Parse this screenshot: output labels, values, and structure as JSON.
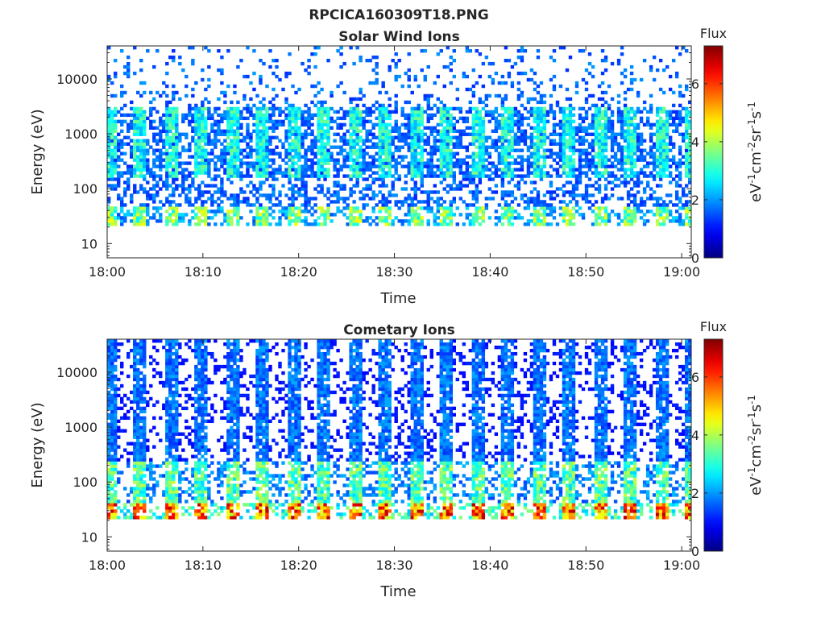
{
  "figure": {
    "title": "RPCICA160309T18.PNG"
  },
  "chart_data": [
    {
      "type": "heatmap",
      "title": "Solar Wind Ions",
      "xlabel": "Time",
      "ylabel": "Energy (eV)",
      "x_ticks": [
        "18:00",
        "18:10",
        "18:20",
        "18:30",
        "18:40",
        "18:50",
        "19:00"
      ],
      "x_range": [
        "18:00",
        "19:01"
      ],
      "y_scale": "log",
      "y_ticks": [
        "10",
        "100",
        "1000",
        "10000"
      ],
      "y_range": [
        5.5,
        40000
      ],
      "colorbar": {
        "title": "Flux",
        "label": "eV-1cm-2sr-1s-1",
        "ticks": [
          "0",
          "2",
          "4",
          "6"
        ],
        "range": [
          0,
          7.3
        ],
        "colormap": "jet"
      },
      "bands": [
        {
          "energy_range_eV": [
            20,
            45
          ],
          "level": 3.8,
          "pulsed": true,
          "pulse_period_min": 3.2
        },
        {
          "energy_range_eV": [
            150,
            3000
          ],
          "level": 3.0,
          "pulsed": true,
          "pulse_period_min": 3.2
        },
        {
          "energy_range_eV": [
            50,
            40000
          ],
          "level": 1.7,
          "pulsed": false
        }
      ]
    },
    {
      "type": "heatmap",
      "title": "Cometary Ions",
      "xlabel": "Time",
      "ylabel": "Energy (eV)",
      "x_ticks": [
        "18:00",
        "18:10",
        "18:20",
        "18:30",
        "18:40",
        "18:50",
        "19:00"
      ],
      "x_range": [
        "18:00",
        "19:01"
      ],
      "y_scale": "log",
      "y_ticks": [
        "10",
        "100",
        "1000",
        "10000"
      ],
      "y_range": [
        5.5,
        40000
      ],
      "colorbar": {
        "title": "Flux",
        "label": "eV-1cm-2sr-1s-1",
        "ticks": [
          "0",
          "2",
          "4",
          "6"
        ],
        "range": [
          0,
          7.3
        ],
        "colormap": "jet"
      },
      "bands": [
        {
          "energy_range_eV": [
            22,
            40
          ],
          "level": 5.8,
          "pulsed": true,
          "pulse_period_min": 3.2
        },
        {
          "energy_range_eV": [
            40,
            250
          ],
          "level": 3.5,
          "pulsed": true,
          "pulse_period_min": 3.2
        },
        {
          "energy_range_eV": [
            250,
            40000
          ],
          "level": 1.8,
          "pulsed": true,
          "pulse_period_min": 3.2
        }
      ]
    }
  ]
}
